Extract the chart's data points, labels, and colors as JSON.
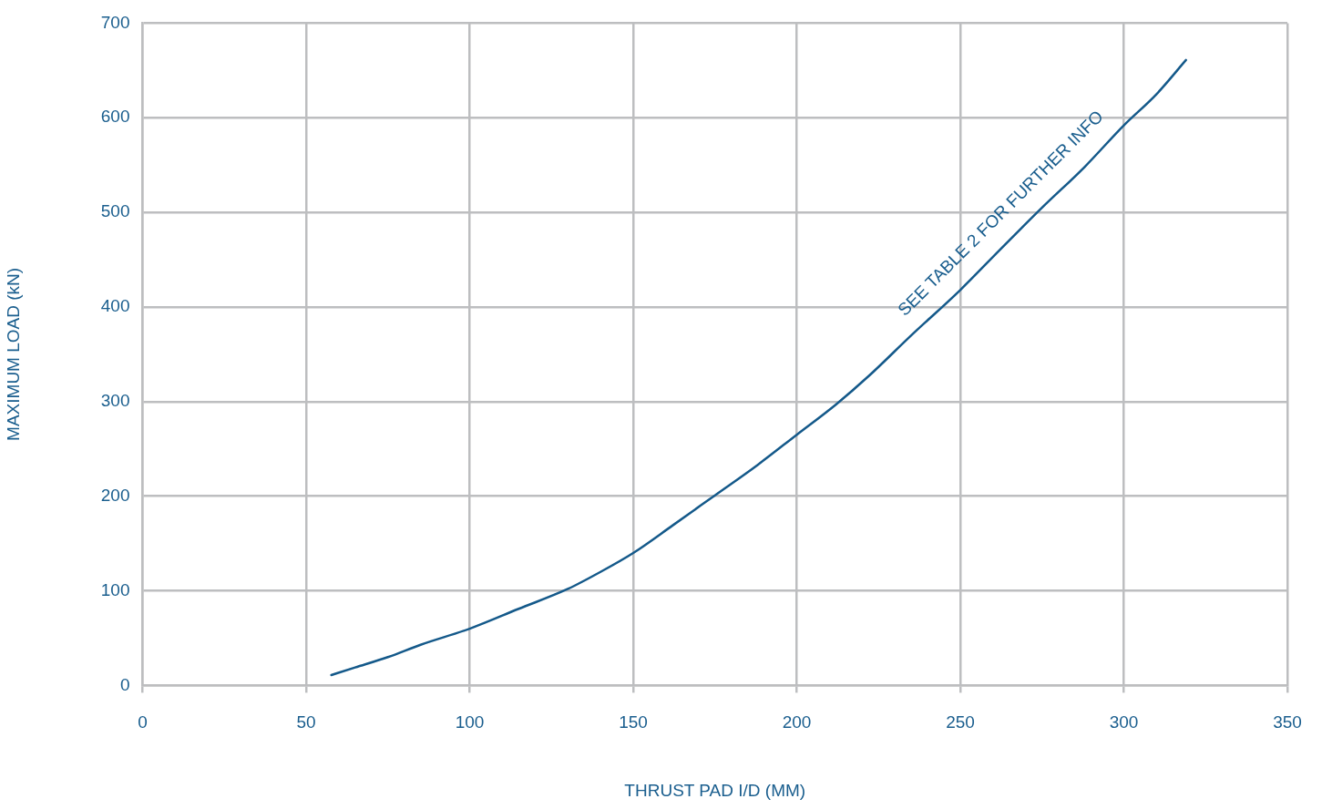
{
  "chart_data": {
    "type": "line",
    "xlabel": "THRUST PAD I/D (MM)",
    "ylabel": "MAXIMUM LOAD (kN)",
    "x": [
      57.7,
      65,
      75,
      85,
      100,
      115,
      130,
      140,
      150,
      162,
      175,
      188,
      200,
      212,
      222,
      235,
      250,
      262,
      275,
      288,
      300,
      310,
      319
    ],
    "values": [
      11,
      19,
      30,
      43,
      60,
      81,
      102,
      120,
      140,
      169,
      201,
      233,
      265,
      297,
      327,
      370,
      418,
      460,
      505,
      548,
      592,
      625,
      661
    ],
    "color": "#14598a",
    "xlim": [
      0,
      350
    ],
    "xticks": [
      0,
      50,
      100,
      150,
      200,
      250,
      300,
      350
    ],
    "ylim": [
      0,
      700
    ],
    "yticks": [
      0,
      100,
      200,
      300,
      400,
      500,
      600,
      700
    ],
    "grid": true,
    "marker": "none",
    "line_style": "solid",
    "annotations": [
      "SEE TABLE 2 FOR FURTHER INFO"
    ]
  }
}
